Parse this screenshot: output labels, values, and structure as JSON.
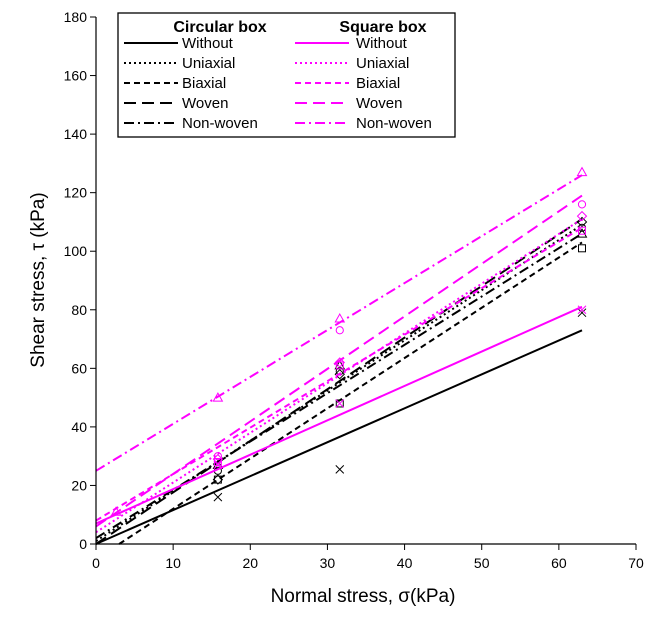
{
  "chart_data": {
    "type": "scatter",
    "xlabel": "Normal stress, σ(kPa)",
    "ylabel": "Shear stress, τ (kPa)",
    "xlim": [
      0,
      70
    ],
    "ylim": [
      0,
      180
    ],
    "xticks": [
      0,
      10,
      20,
      30,
      40,
      50,
      60,
      70
    ],
    "yticks": [
      0,
      20,
      40,
      60,
      80,
      100,
      120,
      140,
      160,
      180
    ],
    "grid": false,
    "legend": {
      "placement": "top-left",
      "group_headers": [
        "Circular box",
        "Square box"
      ],
      "entries": [
        "Without",
        "Uniaxial",
        "Biaxial",
        "Woven",
        "Non-woven"
      ]
    },
    "colors": {
      "circular": "#000000",
      "square": "#ff00ff"
    },
    "series": [
      {
        "group": "Circular box",
        "name": "Without",
        "dash": "solid",
        "marker": "x",
        "fit": [
          [
            0,
            0
          ],
          [
            63,
            73
          ]
        ],
        "points": [
          [
            15.8,
            16
          ],
          [
            31.6,
            25.5
          ],
          [
            63,
            79
          ]
        ]
      },
      {
        "group": "Circular box",
        "name": "Uniaxial",
        "dash": "dotted",
        "marker": "circle",
        "fit": [
          [
            0,
            1
          ],
          [
            63,
            109
          ]
        ],
        "points": [
          [
            15.8,
            25
          ],
          [
            31.6,
            59
          ],
          [
            63,
            108
          ]
        ]
      },
      {
        "group": "Circular box",
        "name": "Biaxial",
        "dash": "dashed",
        "marker": "square",
        "fit": [
          [
            3,
            0
          ],
          [
            63,
            103
          ]
        ],
        "points": [
          [
            15.8,
            22
          ],
          [
            31.6,
            48
          ],
          [
            63,
            101
          ]
        ]
      },
      {
        "group": "Circular box",
        "name": "Woven",
        "dash": "longdash",
        "marker": "diamond",
        "fit": [
          [
            0,
            0
          ],
          [
            63,
            111
          ]
        ],
        "points": [
          [
            15.8,
            22
          ],
          [
            31.6,
            58
          ],
          [
            63,
            110
          ]
        ]
      },
      {
        "group": "Circular box",
        "name": "Non-woven",
        "dash": "dashdot",
        "marker": "triangle",
        "fit": [
          [
            0,
            2
          ],
          [
            63,
            106
          ]
        ],
        "points": [
          [
            15.8,
            27
          ],
          [
            31.6,
            61
          ],
          [
            63,
            106
          ]
        ]
      },
      {
        "group": "Square box",
        "name": "Without",
        "dash": "solid",
        "marker": "x",
        "fit": [
          [
            0,
            7
          ],
          [
            63,
            81
          ]
        ],
        "points": [
          [
            15.8,
            27
          ],
          [
            31.6,
            48
          ],
          [
            63,
            80
          ]
        ]
      },
      {
        "group": "Square box",
        "name": "Uniaxial",
        "dash": "dotted",
        "marker": "circle",
        "fit": [
          [
            0,
            4
          ],
          [
            63,
            111
          ]
        ],
        "points": [
          [
            15.8,
            30
          ],
          [
            31.6,
            73
          ],
          [
            63,
            116
          ]
        ]
      },
      {
        "group": "Square box",
        "name": "Biaxial",
        "dash": "dashed",
        "marker": "square",
        "fit": [
          [
            0,
            8
          ],
          [
            63,
            108
          ]
        ],
        "points": [
          [
            15.8,
            28
          ],
          [
            31.6,
            61
          ],
          [
            63,
            107
          ]
        ]
      },
      {
        "group": "Square box",
        "name": "Woven",
        "dash": "longdash",
        "marker": "diamond",
        "fit": [
          [
            0,
            6
          ],
          [
            63,
            119
          ]
        ],
        "points": [
          [
            15.8,
            29
          ],
          [
            31.6,
            62
          ],
          [
            63,
            112
          ]
        ]
      },
      {
        "group": "Square box",
        "name": "Non-woven",
        "dash": "dashdot",
        "marker": "triangle",
        "fit": [
          [
            0,
            25
          ],
          [
            63,
            126
          ]
        ],
        "points": [
          [
            2.6,
            11
          ],
          [
            15.8,
            50
          ],
          [
            31.6,
            77
          ],
          [
            63,
            127
          ]
        ]
      }
    ]
  }
}
